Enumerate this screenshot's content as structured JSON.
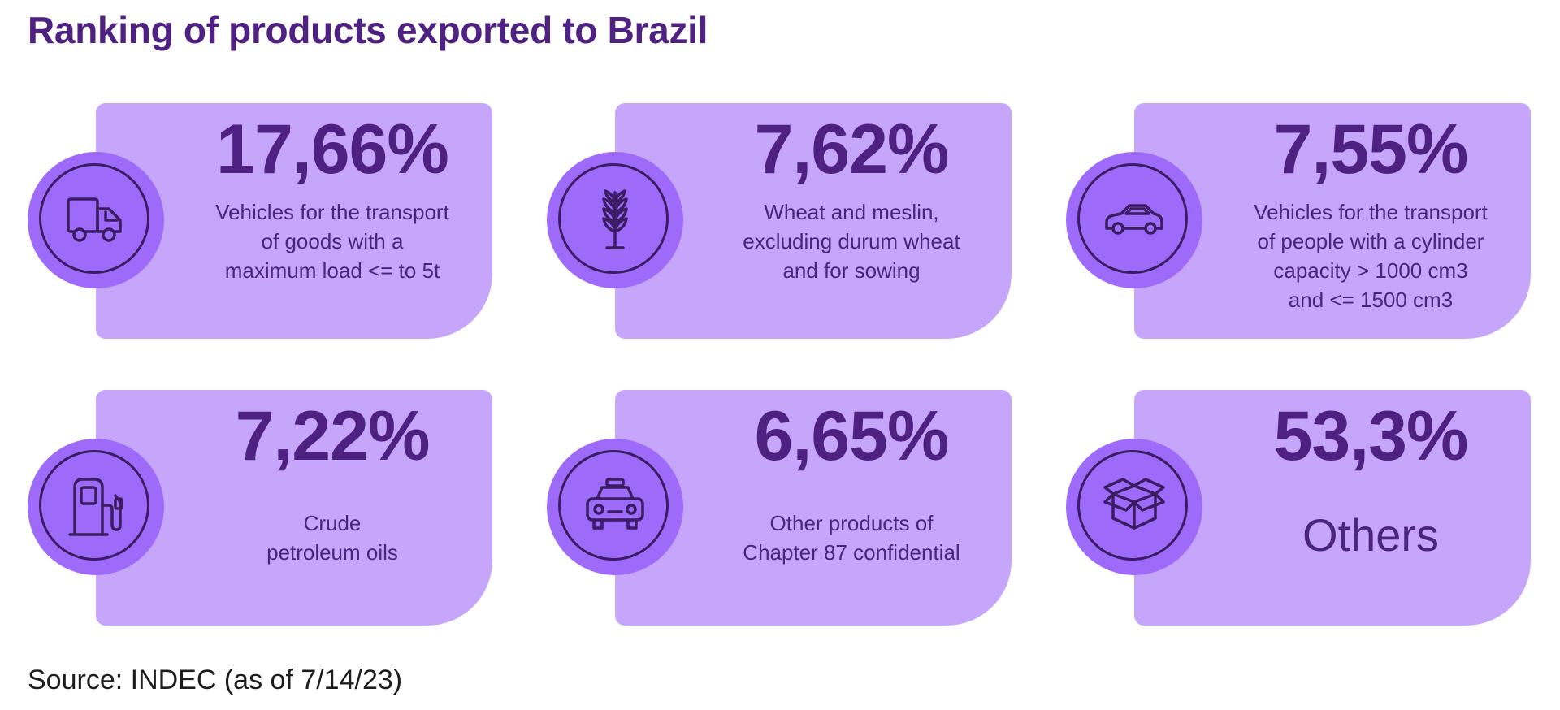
{
  "title": "Ranking of products exported to Brazil",
  "source": "Source: INDEC (as of 7/14/23)",
  "colors": {
    "title": "#4f2182",
    "card_background": "#c6a6fb",
    "badge_background": "#9d6af9",
    "icon_stroke": "#3b1c63",
    "text": "#4b2480"
  },
  "chart_data": {
    "type": "table",
    "title": "Ranking of products exported to Brazil",
    "unit": "%",
    "items": [
      {
        "value": "17,66%",
        "share": 17.66,
        "label": "Vehicles for the transport\nof goods with a\nmaximum load <= to 5t",
        "icon": "truck-icon"
      },
      {
        "value": "7,62%",
        "share": 7.62,
        "label": "Wheat and meslin,\nexcluding durum wheat\nand for sowing",
        "icon": "wheat-icon"
      },
      {
        "value": "7,55%",
        "share": 7.55,
        "label": "Vehicles for the transport\nof people with a cylinder\ncapacity > 1000 cm3\nand <= 1500 cm3",
        "icon": "car-icon"
      },
      {
        "value": "7,22%",
        "share": 7.22,
        "label": "Crude\npetroleum oils",
        "icon": "fuel-pump-icon"
      },
      {
        "value": "6,65%",
        "share": 6.65,
        "label": "Other products of\nChapter 87 confidential",
        "icon": "taxi-icon"
      },
      {
        "value": "53,3%",
        "share": 53.3,
        "label": "Others",
        "icon": "box-icon"
      }
    ]
  }
}
